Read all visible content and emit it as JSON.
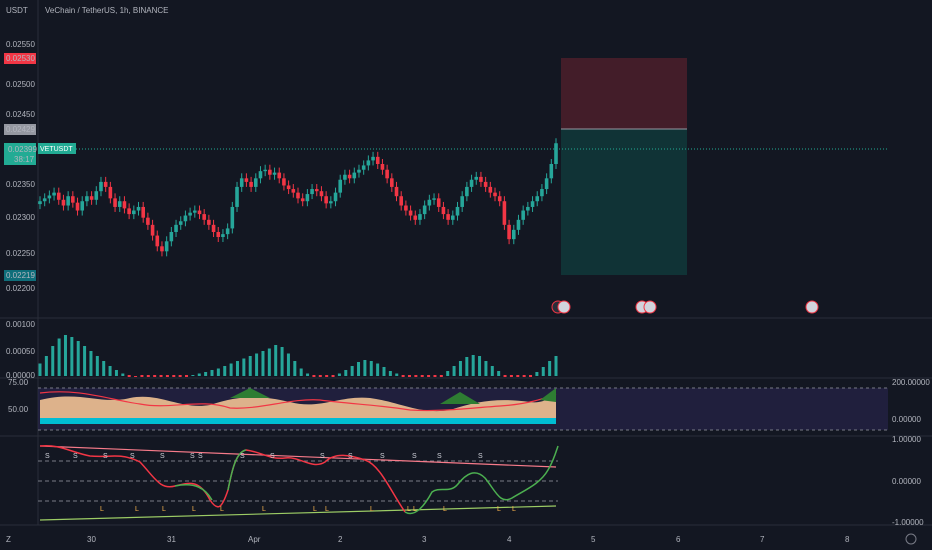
{
  "header": {
    "currency": "USDT",
    "symbol_title": "VeChain / TetherUS, 1h, BINANCE"
  },
  "price_axis": {
    "ticks": [
      "0.02550",
      "0.02500",
      "0.02450",
      "0.02350",
      "0.02300",
      "0.02250",
      "0.02200"
    ],
    "badge_red": "0.02530",
    "badge_gray": "0.02429",
    "badge_green_price": "0.02399",
    "badge_green_timer": "38:17",
    "badge_teal": "0.02219",
    "symbol_tag": "VETUSDT"
  },
  "colors": {
    "up": "#089981",
    "down": "#f23645",
    "bull_candle": "#26a69a",
    "bg": "#131722",
    "green_badge": "#22ab94",
    "red_badge": "#f23645"
  },
  "indicator1": {
    "ticks": [
      "0.00100",
      "0.00050",
      "0.00000"
    ]
  },
  "indicator2": {
    "left_ticks": [
      "75.00",
      "50.00"
    ],
    "right_ticks": [
      "200.00000",
      "0.00000"
    ]
  },
  "indicator3": {
    "right_ticks": [
      "1.00000",
      "0.00000",
      "-1.00000"
    ],
    "marker_S": "S",
    "marker_L": "L"
  },
  "time_axis": {
    "labels": [
      "30",
      "31",
      "Apr",
      "2",
      "3",
      "4",
      "5",
      "6",
      "7",
      "8"
    ]
  },
  "chart_data": {
    "type": "candlestick",
    "title": "VeChain / TetherUS, 1h, BINANCE",
    "ylim": [
      0.0218,
      0.0256
    ],
    "last_price": 0.02399,
    "position": {
      "type": "short",
      "entry": 0.02429,
      "stop": 0.0253,
      "target": 0.02219
    },
    "closes": [
      0.02318,
      0.02322,
      0.02326,
      0.0233,
      0.0232,
      0.02312,
      0.02325,
      0.02316,
      0.02305,
      0.02318,
      0.02325,
      0.0232,
      0.02332,
      0.02345,
      0.02338,
      0.02322,
      0.0231,
      0.02318,
      0.02308,
      0.023,
      0.02305,
      0.0231,
      0.02295,
      0.02285,
      0.0227,
      0.02255,
      0.02248,
      0.02262,
      0.02275,
      0.02285,
      0.0229,
      0.02298,
      0.02302,
      0.02305,
      0.023,
      0.02292,
      0.02285,
      0.02275,
      0.02268,
      0.02272,
      0.0228,
      0.0231,
      0.02338,
      0.0235,
      0.02345,
      0.02338,
      0.0235,
      0.0236,
      0.02362,
      0.02355,
      0.02358,
      0.0235,
      0.0234,
      0.02335,
      0.0233,
      0.02322,
      0.02318,
      0.02328,
      0.02335,
      0.02332,
      0.02325,
      0.02315,
      0.02318,
      0.0233,
      0.02348,
      0.02355,
      0.0235,
      0.02358,
      0.02362,
      0.02368,
      0.02375,
      0.0238,
      0.0237,
      0.02362,
      0.0235,
      0.02338,
      0.02325,
      0.02312,
      0.02305,
      0.02298,
      0.02292,
      0.023,
      0.02312,
      0.0232,
      0.02322,
      0.0231,
      0.023,
      0.02292,
      0.02298,
      0.0231,
      0.02325,
      0.02338,
      0.02348,
      0.02352,
      0.02345,
      0.02338,
      0.0233,
      0.02325,
      0.02318,
      0.02285,
      0.02265,
      0.02278,
      0.02292,
      0.02305,
      0.0231,
      0.02318,
      0.02325,
      0.02335,
      0.0235,
      0.0237,
      0.02399
    ],
    "macd_histogram": [
      0.00025,
      0.0004,
      0.0006,
      0.00075,
      0.00082,
      0.00078,
      0.0007,
      0.0006,
      0.0005,
      0.0004,
      0.0003,
      0.0002,
      0.00012,
      5e-05,
      0.0,
      -2e-05,
      0,
      0,
      0,
      0,
      0,
      0,
      0,
      0,
      2e-05,
      5e-05,
      8e-05,
      0.00012,
      0.00015,
      0.0002,
      0.00025,
      0.0003,
      0.00035,
      0.0004,
      0.00045,
      0.0005,
      0.00055,
      0.00062,
      0.00058,
      0.00045,
      0.0003,
      0.00015,
      5e-05,
      0,
      0,
      0,
      0,
      5e-05,
      0.00012,
      0.0002,
      0.00028,
      0.00032,
      0.0003,
      0.00025,
      0.00018,
      0.0001,
      5e-05,
      0,
      0,
      0,
      0,
      0,
      0,
      0,
      0.0001,
      0.0002,
      0.0003,
      0.00038,
      0.00042,
      0.0004,
      0.0003,
      0.0002,
      0.0001,
      0,
      0,
      0,
      0,
      0,
      8e-05,
      0.00018,
      0.0003,
      0.0004
    ]
  }
}
